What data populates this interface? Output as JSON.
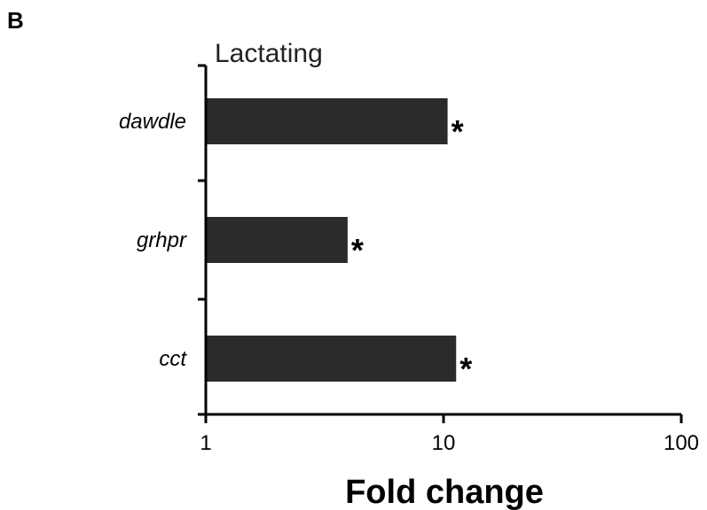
{
  "panel_label": "B",
  "chart_data": {
    "type": "bar",
    "orientation": "horizontal",
    "title": "Lactating",
    "xlabel": "Fold change",
    "ylabel": "",
    "x_scale": "log",
    "xlim": [
      1,
      100
    ],
    "x_ticks": [
      1,
      10,
      100
    ],
    "x_tick_labels": [
      "1",
      "10",
      "100"
    ],
    "categories": [
      "dawdle",
      "grhpr",
      "cct"
    ],
    "values": [
      10.4,
      3.95,
      11.3
    ],
    "annotations": [
      "*",
      "*",
      "*"
    ],
    "bar_color": "#2b2b2b",
    "grid": false,
    "legend": "none"
  }
}
